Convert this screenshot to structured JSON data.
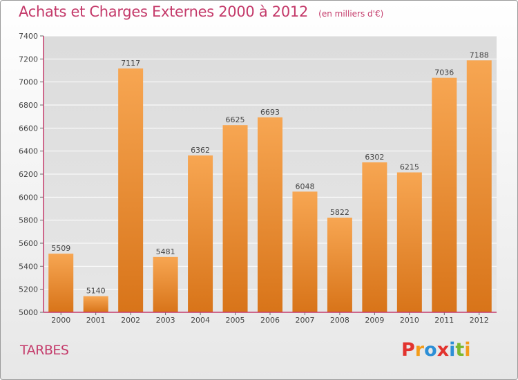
{
  "header": {
    "title": "Achats et Charges Externes 2000 à 2012",
    "unit": "(en milliers d'€)"
  },
  "footer": {
    "city": "TARBES",
    "logo_text": "Proxiti",
    "logo_colors": [
      "#e2332e",
      "#f39c1a",
      "#2d8fd6",
      "#e2332e",
      "#2d8fd6",
      "#7cb82f",
      "#f39c1a"
    ]
  },
  "colors": {
    "title": "#c43a6a",
    "bar_light": "#f7a652",
    "bar_dark": "#d87419",
    "axis": "#c43a6a",
    "grid": "#ffffff"
  },
  "chart_data": {
    "type": "bar",
    "categories": [
      "2000",
      "2001",
      "2002",
      "2003",
      "2004",
      "2005",
      "2006",
      "2007",
      "2008",
      "2009",
      "2010",
      "2011",
      "2012"
    ],
    "values": [
      5509,
      5140,
      7117,
      5481,
      6362,
      6625,
      6693,
      6048,
      5822,
      6302,
      6215,
      7036,
      7188
    ],
    "ylim": [
      5000,
      7400
    ],
    "yticks": [
      5000,
      5200,
      5400,
      5600,
      5800,
      6000,
      6200,
      6400,
      6600,
      6800,
      7000,
      7200,
      7400
    ],
    "grid": true,
    "data_labels": true
  }
}
